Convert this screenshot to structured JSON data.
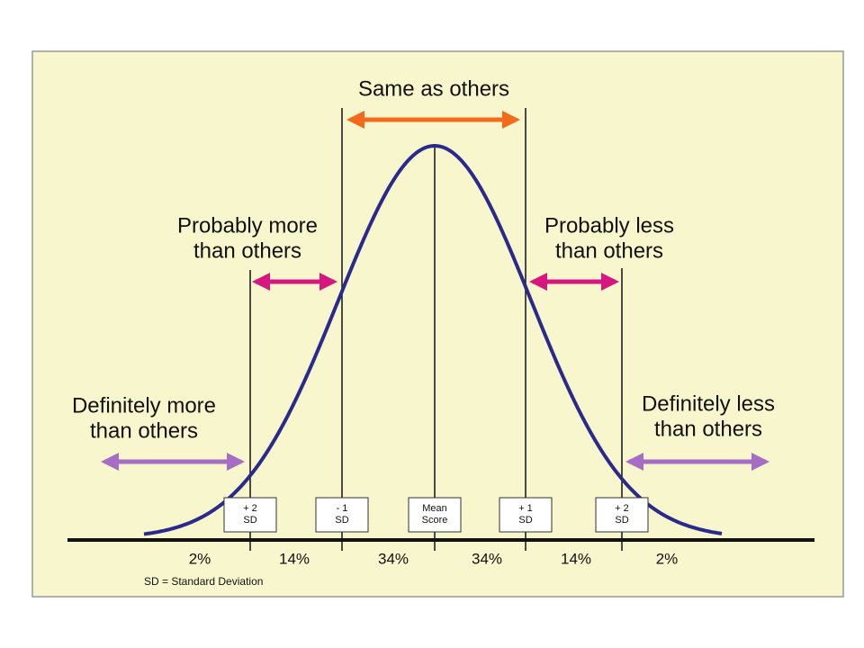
{
  "annotations": [
    {
      "lines": [
        "Same as others"
      ]
    },
    {
      "lines": [
        "Probably more",
        "than others"
      ]
    },
    {
      "lines": [
        "Probably less",
        "than others"
      ]
    },
    {
      "lines": [
        "Definitely more",
        "than others"
      ]
    },
    {
      "lines": [
        "Definitely less",
        "than others"
      ]
    }
  ],
  "markers": [
    {
      "lines": [
        "+ 2",
        "SD"
      ]
    },
    {
      "lines": [
        "- 1",
        "SD"
      ]
    },
    {
      "lines": [
        "Mean",
        "Score"
      ]
    },
    {
      "lines": [
        "+ 1",
        "SD"
      ]
    },
    {
      "lines": [
        "+ 2",
        "SD"
      ]
    }
  ],
  "percentages": [
    "2%",
    "14%",
    "34%",
    "34%",
    "14%",
    "2%"
  ],
  "footnote": "SD = Standard Deviation"
}
